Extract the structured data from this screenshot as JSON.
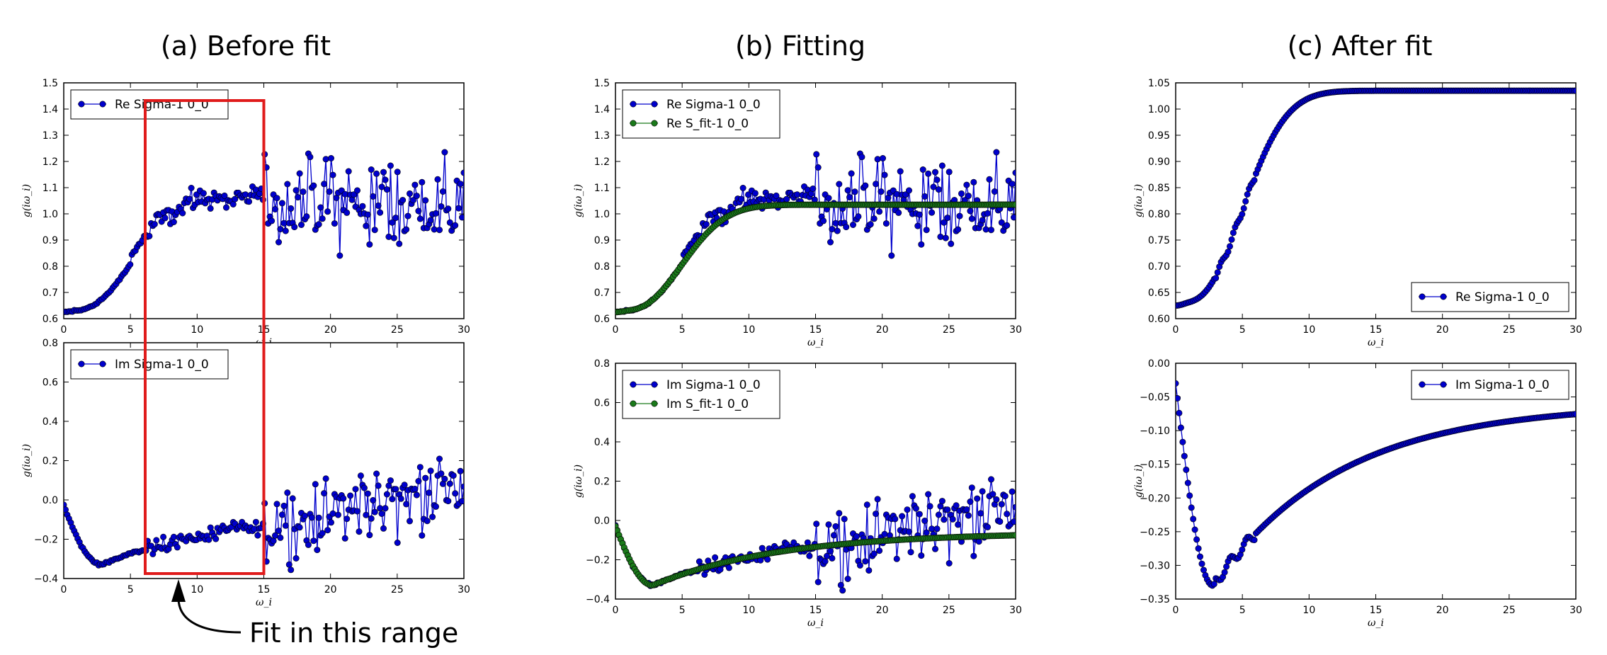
{
  "panel_titles": [
    "(a) Before fit",
    "(b) Fitting",
    "(c) After fit"
  ],
  "annotation": {
    "text": "Fit in this range",
    "range": [
      6,
      15
    ]
  },
  "colors": {
    "blue": "#0000cc",
    "green": "#1a7a1a",
    "range_box": "#e01b1b"
  },
  "chart_data": [
    {
      "id": "a_re",
      "type": "line",
      "panel": "(a) Before fit",
      "xlabel": "ω_i",
      "ylabel": "g(iω_i)",
      "xlim": [
        0,
        30
      ],
      "ylim": [
        0.6,
        1.5
      ],
      "xticks": [
        0,
        5,
        10,
        15,
        20,
        25,
        30
      ],
      "yticks": [
        0.6,
        0.7,
        0.8,
        0.9,
        1.0,
        1.1,
        1.2,
        1.3,
        1.4,
        1.5
      ],
      "ytick_labels": [
        "0.6",
        "0.7",
        "0.8",
        "0.9",
        "1.0",
        "1.1",
        "1.2",
        "1.3",
        "1.4",
        "1.5"
      ],
      "legend": [
        "Re Sigma-1 0_0"
      ],
      "legend_loc": "upper left",
      "series": [
        {
          "name": "Re Sigma-1 0_0",
          "color": "blue",
          "model": "re_noisy"
        }
      ]
    },
    {
      "id": "a_im",
      "type": "line",
      "panel": "(a) Before fit",
      "xlabel": "ω_i",
      "ylabel": "g(iω_i)",
      "xlim": [
        0,
        30
      ],
      "ylim": [
        -0.4,
        0.8
      ],
      "xticks": [
        0,
        5,
        10,
        15,
        20,
        25,
        30
      ],
      "yticks": [
        -0.4,
        -0.2,
        0.0,
        0.2,
        0.4,
        0.6,
        0.8
      ],
      "ytick_labels": [
        "−0.4",
        "−0.2",
        "0.0",
        "0.2",
        "0.4",
        "0.6",
        "0.8"
      ],
      "legend": [
        "Im Sigma-1 0_0"
      ],
      "legend_loc": "upper left",
      "series": [
        {
          "name": "Im Sigma-1 0_0",
          "color": "blue",
          "model": "im_noisy"
        }
      ]
    },
    {
      "id": "b_re",
      "type": "line",
      "panel": "(b) Fitting",
      "xlabel": "ω_i",
      "ylabel": "g(iω_i)",
      "xlim": [
        0,
        30
      ],
      "ylim": [
        0.6,
        1.5
      ],
      "xticks": [
        0,
        5,
        10,
        15,
        20,
        25,
        30
      ],
      "yticks": [
        0.6,
        0.7,
        0.8,
        0.9,
        1.0,
        1.1,
        1.2,
        1.3,
        1.4,
        1.5
      ],
      "ytick_labels": [
        "0.6",
        "0.7",
        "0.8",
        "0.9",
        "1.0",
        "1.1",
        "1.2",
        "1.3",
        "1.4",
        "1.5"
      ],
      "legend": [
        "Re Sigma-1 0_0",
        "Re S_fit-1 0_0"
      ],
      "legend_loc": "upper left",
      "series": [
        {
          "name": "Re Sigma-1 0_0",
          "color": "blue",
          "model": "re_noisy"
        },
        {
          "name": "Re S_fit-1 0_0",
          "color": "green",
          "model": "re_fit"
        }
      ]
    },
    {
      "id": "b_im",
      "type": "line",
      "panel": "(b) Fitting",
      "xlabel": "ω_i",
      "ylabel": "g(iω_i)",
      "xlim": [
        0,
        30
      ],
      "ylim": [
        -0.4,
        0.8
      ],
      "xticks": [
        0,
        5,
        10,
        15,
        20,
        25,
        30
      ],
      "yticks": [
        -0.4,
        -0.2,
        0.0,
        0.2,
        0.4,
        0.6,
        0.8
      ],
      "ytick_labels": [
        "−0.4",
        "−0.2",
        "0.0",
        "0.2",
        "0.4",
        "0.6",
        "0.8"
      ],
      "legend": [
        "Im Sigma-1 0_0",
        "Im S_fit-1 0_0"
      ],
      "legend_loc": "upper left",
      "series": [
        {
          "name": "Im Sigma-1 0_0",
          "color": "blue",
          "model": "im_noisy"
        },
        {
          "name": "Im S_fit-1 0_0",
          "color": "green",
          "model": "im_fit"
        }
      ]
    },
    {
      "id": "c_re",
      "type": "line",
      "panel": "(c) After fit",
      "xlabel": "ω_i",
      "ylabel": "g(iω_i)",
      "xlim": [
        0,
        30
      ],
      "ylim": [
        0.6,
        1.05
      ],
      "xticks": [
        0,
        5,
        10,
        15,
        20,
        25,
        30
      ],
      "yticks": [
        0.6,
        0.65,
        0.7,
        0.75,
        0.8,
        0.85,
        0.9,
        0.95,
        1.0,
        1.05
      ],
      "ytick_labels": [
        "0.60",
        "0.65",
        "0.70",
        "0.75",
        "0.80",
        "0.85",
        "0.90",
        "0.95",
        "1.00",
        "1.05"
      ],
      "legend": [
        "Re Sigma-1 0_0"
      ],
      "legend_loc": "lower right",
      "series": [
        {
          "name": "Re Sigma-1 0_0",
          "color": "blue",
          "model": "re_after"
        }
      ]
    },
    {
      "id": "c_im",
      "type": "line",
      "panel": "(c) After fit",
      "xlabel": "ω_i",
      "ylabel": "g(iω_i)",
      "xlim": [
        0,
        30
      ],
      "ylim": [
        -0.35,
        0.0
      ],
      "xticks": [
        0,
        5,
        10,
        15,
        20,
        25,
        30
      ],
      "yticks": [
        -0.35,
        -0.3,
        -0.25,
        -0.2,
        -0.15,
        -0.1,
        -0.05,
        0.0
      ],
      "ytick_labels": [
        "−0.35",
        "−0.30",
        "−0.25",
        "−0.20",
        "−0.15",
        "−0.10",
        "−0.05",
        "0.00"
      ],
      "legend": [
        "Im Sigma-1 0_0"
      ],
      "legend_loc": "upper right",
      "series": [
        {
          "name": "Im Sigma-1 0_0",
          "color": "blue",
          "model": "im_after"
        }
      ]
    }
  ]
}
